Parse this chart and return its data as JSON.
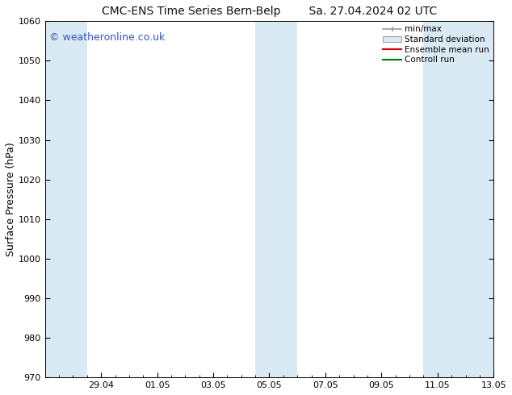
{
  "title_left": "CMC-ENS Time Series Bern-Belp",
  "title_right": "Sa. 27.04.2024 02 UTC",
  "ylabel": "Surface Pressure (hPa)",
  "watermark": "© weatheronline.co.uk",
  "watermark_color": "#3355bb",
  "ylim": [
    970,
    1060
  ],
  "yticks": [
    970,
    980,
    990,
    1000,
    1010,
    1020,
    1030,
    1040,
    1050,
    1060
  ],
  "xtick_labels": [
    "29.04",
    "01.05",
    "03.05",
    "05.05",
    "07.05",
    "09.05",
    "11.05",
    "13.05"
  ],
  "xlim_start": 0,
  "xlim_end": 16,
  "num_days": 16,
  "shaded_bands": [
    {
      "x_start": 0.0,
      "x_end": 1.5
    },
    {
      "x_start": 7.5,
      "x_end": 9.0
    },
    {
      "x_start": 13.5,
      "x_end": 16.0
    }
  ],
  "band_color": "#daeaf5",
  "legend_labels": [
    "min/max",
    "Standard deviation",
    "Ensemble mean run",
    "Controll run"
  ],
  "legend_colors_line": [
    "#999999",
    "#bbcfdf",
    "#dd0000",
    "#007700"
  ],
  "font_size_title": 10,
  "font_size_ylabel": 9,
  "font_size_ticks": 8,
  "font_size_watermark": 9,
  "title_font_color": "#111111",
  "bg_color": "#ffffff"
}
